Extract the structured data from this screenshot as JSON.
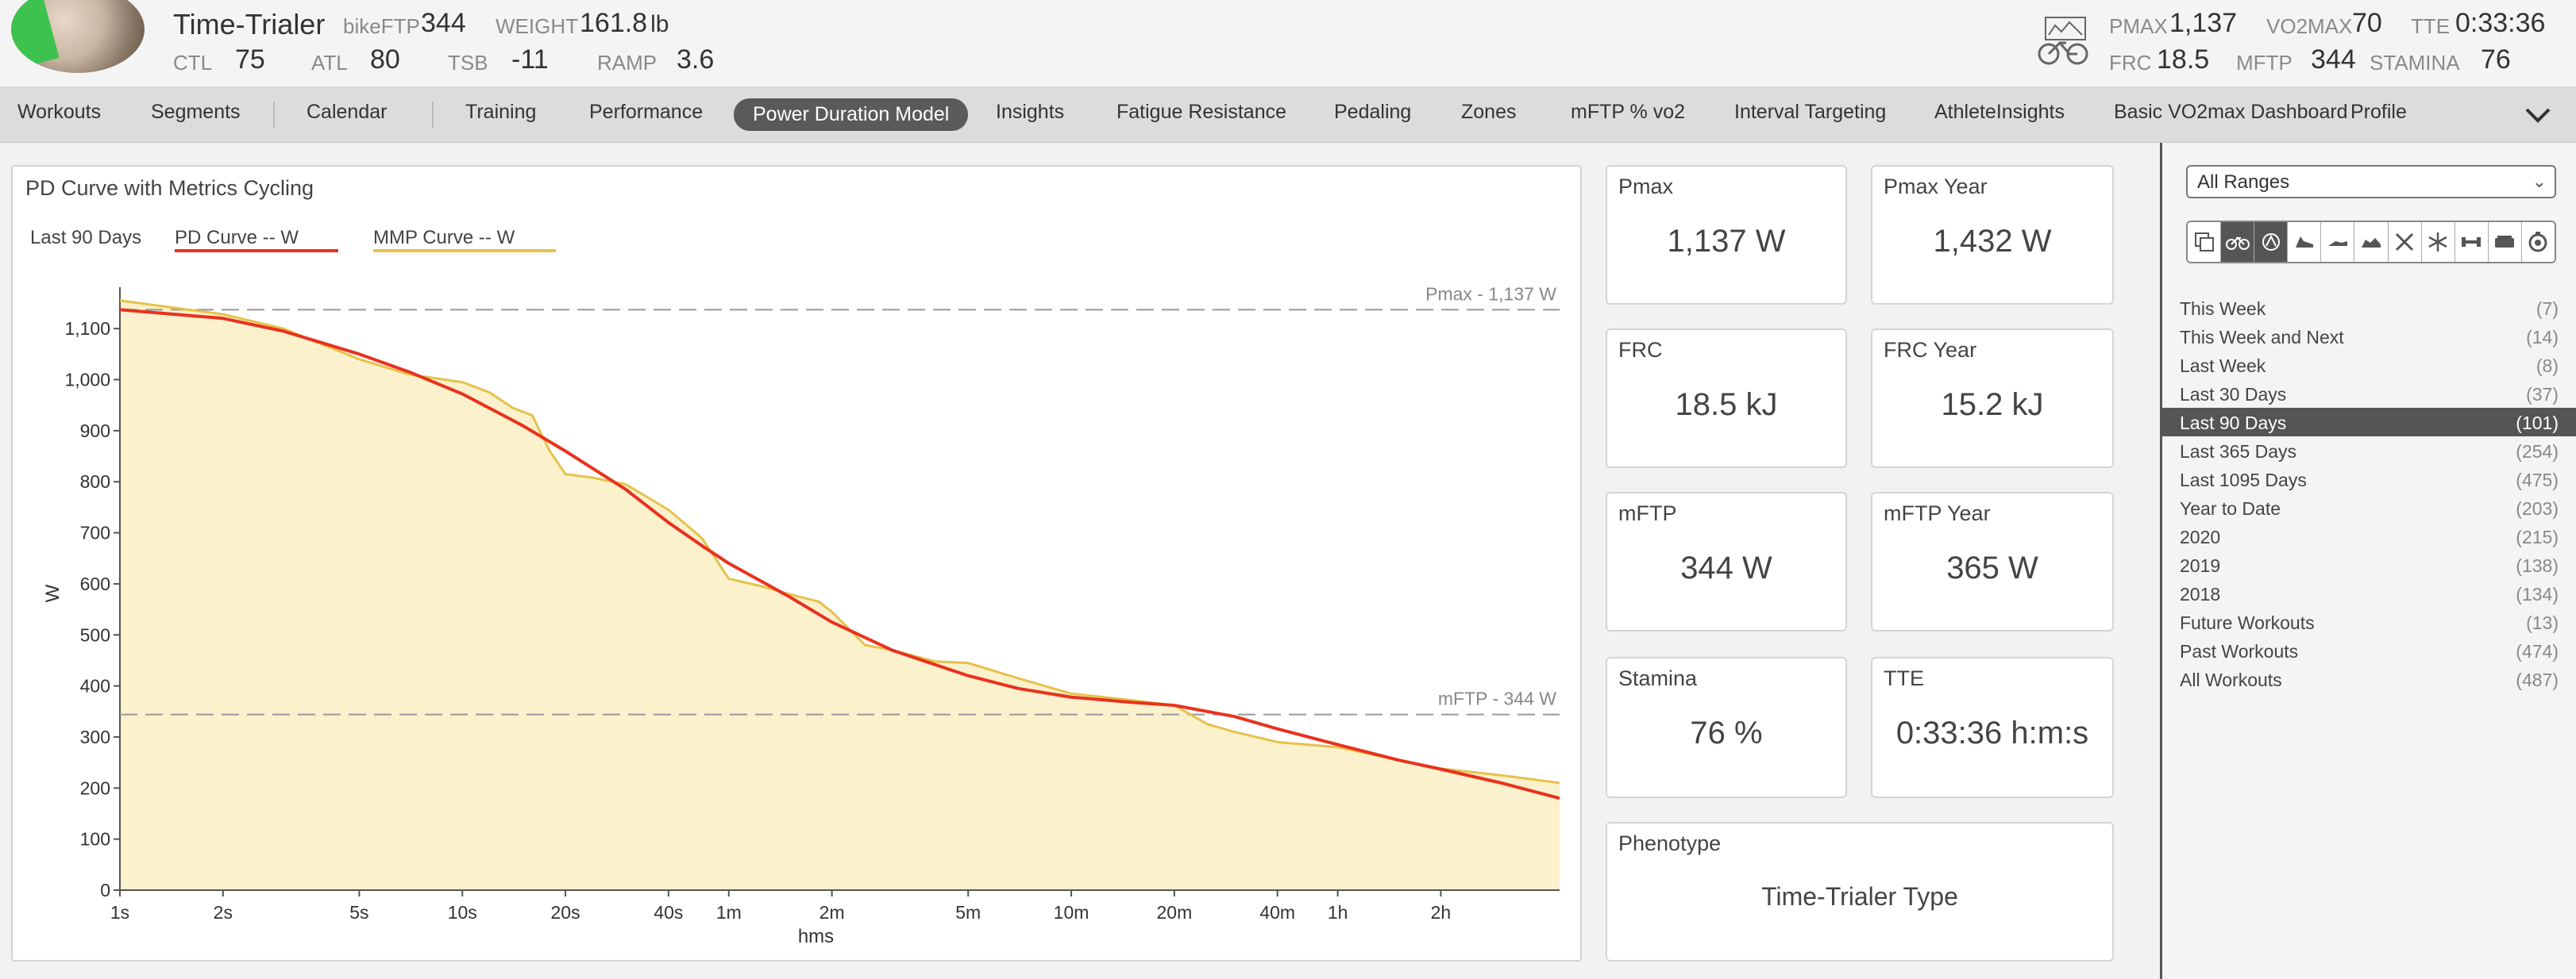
{
  "header": {
    "athlete_name": "Time-Trialer",
    "left_metrics": {
      "bikeftp_label": "bikeFTP",
      "bikeftp_value": "344",
      "weight_label": "WEIGHT",
      "weight_value": "161.8",
      "weight_unit": "lb",
      "ctl_label": "CTL",
      "ctl_value": "75",
      "atl_label": "ATL",
      "atl_value": "80",
      "tsb_label": "TSB",
      "tsb_value": "-11",
      "ramp_label": "RAMP",
      "ramp_value": "3.6"
    },
    "right_metrics": {
      "pmax_label": "PMAX",
      "pmax_value": "1,137",
      "vo2max_label": "VO2MAX",
      "vo2max_value": "70",
      "tte_label": "TTE",
      "tte_value": "0:33:36",
      "frc_label": "FRC",
      "frc_value": "18.5",
      "mftp_label": "MFTP",
      "mftp_value": "344",
      "stamina_label": "STAMINA",
      "stamina_value": "76"
    },
    "icons": {
      "avatar": "athlete-avatar",
      "bike_icon": "bike-icon"
    }
  },
  "nav": {
    "items": [
      "Workouts",
      "Segments",
      "Calendar",
      "Training",
      "Performance",
      "Power Duration Model",
      "Insights",
      "Fatigue Resistance",
      "Pedaling",
      "Zones",
      "mFTP % vo2",
      "Interval Targeting",
      "AthleteInsights",
      "Basic VO2max Dashboard",
      "Profile"
    ],
    "active_item": "Power Duration Model",
    "more_icon": "chevron-down-icon"
  },
  "chart_panel": {
    "title": "PD Curve with Metrics Cycling",
    "range_label": "Last 90 Days",
    "legend": {
      "pd_curve": "PD Curve  -- W",
      "mmp_curve": "MMP Curve  -- W"
    },
    "ref_lines": {
      "pmax": "Pmax - 1,137 W",
      "mftp": "mFTP - 344 W"
    }
  },
  "chart_data": {
    "type": "line",
    "title": "PD Curve with Metrics Cycling",
    "xlabel": "hms",
    "ylabel": "W",
    "x_scale": "log",
    "x_unit": "seconds",
    "xlim": [
      1,
      16000
    ],
    "ylim": [
      0,
      1150
    ],
    "y_ticks": [
      0,
      100,
      200,
      300,
      400,
      500,
      600,
      700,
      800,
      900,
      1000,
      1100
    ],
    "y_tick_labels": [
      "0",
      "100",
      "200",
      "300",
      "400",
      "500",
      "600",
      "700",
      "800",
      "900",
      "1,000",
      "1,100"
    ],
    "x_ticks": [
      1,
      2,
      5,
      10,
      20,
      40,
      60,
      120,
      300,
      600,
      1200,
      2400,
      3600,
      7200
    ],
    "x_tick_labels": [
      "1s",
      "2s",
      "5s",
      "10s",
      "20s",
      "40s",
      "1m",
      "2m",
      "5m",
      "10m",
      "20m",
      "40m",
      "1h",
      "2h"
    ],
    "grid": false,
    "legend_position": "top-left",
    "colors": {
      "pd_curve": "#e8321e",
      "mmp_curve": "#e6c24a",
      "mmp_fill": "#fbf1cc",
      "ref_line": "#999999"
    },
    "series": [
      {
        "name": "PD Curve",
        "x": [
          1,
          2,
          3,
          5,
          7,
          10,
          15,
          20,
          30,
          40,
          50,
          60,
          90,
          120,
          180,
          300,
          420,
          600,
          900,
          1200,
          1800,
          2400,
          3600,
          5400,
          7200,
          10800,
          16000
        ],
        "values": [
          1137,
          1120,
          1095,
          1050,
          1015,
          972,
          910,
          860,
          785,
          720,
          675,
          640,
          575,
          525,
          470,
          420,
          395,
          378,
          368,
          362,
          340,
          316,
          285,
          255,
          237,
          210,
          180
        ]
      },
      {
        "name": "MMP Curve",
        "x": [
          1,
          2,
          3,
          5,
          7,
          10,
          12,
          14,
          16,
          18,
          20,
          24,
          30,
          40,
          50,
          60,
          75,
          90,
          110,
          120,
          150,
          180,
          240,
          300,
          420,
          600,
          900,
          1200,
          1500,
          1800,
          2400,
          3600,
          5400,
          7200,
          10800,
          16000
        ],
        "values": [
          1155,
          1128,
          1100,
          1040,
          1010,
          995,
          975,
          945,
          930,
          860,
          815,
          808,
          795,
          745,
          690,
          610,
          595,
          580,
          565,
          545,
          480,
          470,
          448,
          445,
          415,
          385,
          372,
          362,
          325,
          310,
          290,
          280,
          255,
          238,
          225,
          210
        ]
      }
    ],
    "reference_lines": [
      {
        "label": "Pmax - 1,137 W",
        "value": 1137
      },
      {
        "label": "mFTP - 344 W",
        "value": 344
      }
    ]
  },
  "cards": {
    "pmax": {
      "label": "Pmax",
      "value": "1,137 W"
    },
    "pmax_year": {
      "label": "Pmax Year",
      "value": "1,432 W"
    },
    "frc": {
      "label": "FRC",
      "value": "18.5 kJ"
    },
    "frc_year": {
      "label": "FRC Year",
      "value": "15.2 kJ"
    },
    "mftp": {
      "label": "mFTP",
      "value": "344 W"
    },
    "mftp_year": {
      "label": "mFTP Year",
      "value": "365 W"
    },
    "stamina": {
      "label": "Stamina",
      "value": "76 %"
    },
    "tte": {
      "label": "TTE",
      "value": "0:33:36 h:m:s"
    },
    "phenotype": {
      "label": "Phenotype",
      "value": "Time-Trialer Type"
    }
  },
  "sidebar": {
    "range_select": "All Ranges",
    "sport_icons": [
      "multi-sport-icon",
      "cycling-icon",
      "running-icon",
      "shoe-icon",
      "skating-icon",
      "snow-bike-icon",
      "rowing-icon",
      "snowflake-icon",
      "strength-icon",
      "treadmill-icon",
      "other-sport-icon"
    ],
    "active_sport_index": 1,
    "ranges": [
      {
        "label": "This Week",
        "count": "(7)"
      },
      {
        "label": "This Week and Next",
        "count": "(14)"
      },
      {
        "label": "Last Week",
        "count": "(8)"
      },
      {
        "label": "Last 30 Days",
        "count": "(37)"
      },
      {
        "label": "Last 90 Days",
        "count": "(101)"
      },
      {
        "label": "Last 365 Days",
        "count": "(254)"
      },
      {
        "label": "Last 1095 Days",
        "count": "(475)"
      },
      {
        "label": "Year to Date",
        "count": "(203)"
      },
      {
        "label": "2020",
        "count": "(215)"
      },
      {
        "label": "2019",
        "count": "(138)"
      },
      {
        "label": "2018",
        "count": "(134)"
      },
      {
        "label": "Future Workouts",
        "count": "(13)"
      },
      {
        "label": "Past Workouts",
        "count": "(474)"
      },
      {
        "label": "All Workouts",
        "count": "(487)"
      }
    ],
    "active_range": "Last 90 Days"
  }
}
